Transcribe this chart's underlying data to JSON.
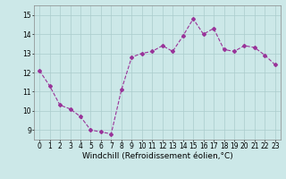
{
  "x": [
    0,
    1,
    2,
    3,
    4,
    5,
    6,
    7,
    8,
    9,
    10,
    11,
    12,
    13,
    14,
    15,
    16,
    17,
    18,
    19,
    20,
    21,
    22,
    23
  ],
  "y": [
    12.1,
    11.3,
    10.3,
    10.1,
    9.7,
    9.0,
    8.9,
    8.8,
    11.1,
    12.8,
    13.0,
    13.1,
    13.4,
    13.1,
    13.9,
    14.8,
    14.0,
    14.3,
    13.2,
    13.1,
    13.4,
    13.3,
    12.9,
    12.4
  ],
  "line_color": "#993399",
  "marker": "D",
  "markersize": 2.0,
  "linewidth": 0.8,
  "xlabel": "Windchill (Refroidissement éolien,°C)",
  "xlabel_fontsize": 6.5,
  "ylim": [
    8.5,
    15.5
  ],
  "xlim": [
    -0.5,
    23.5
  ],
  "yticks": [
    9,
    10,
    11,
    12,
    13,
    14,
    15
  ],
  "xticks": [
    0,
    1,
    2,
    3,
    4,
    5,
    6,
    7,
    8,
    9,
    10,
    11,
    12,
    13,
    14,
    15,
    16,
    17,
    18,
    19,
    20,
    21,
    22,
    23
  ],
  "tick_fontsize": 5.5,
  "bg_color": "#cce8e8",
  "grid_color": "#aacccc",
  "grid_linewidth": 0.5
}
